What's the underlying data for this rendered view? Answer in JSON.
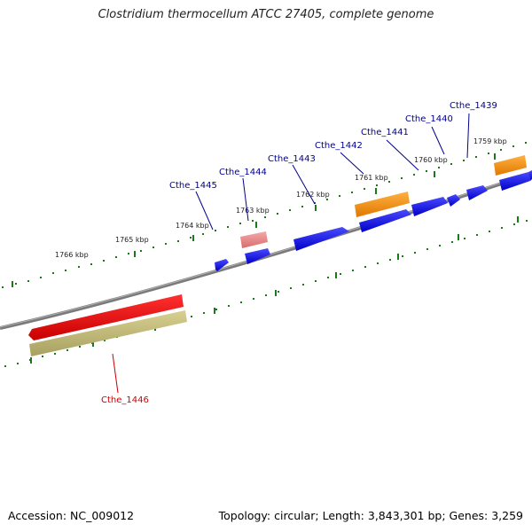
{
  "title": "Clostridium thermocellum ATCC 27405, complete genome",
  "footer": {
    "accession": "Accession: NC_009012",
    "summary": "Topology: circular; Length: 3,843,301 bp; Genes: 3,259"
  },
  "colors": {
    "backbone": "#7a7a7a",
    "tick": "#1a7a1a",
    "gene_label_forward": "#00008b",
    "gene_label_selected": "#cc0000",
    "cds_blue": "#1010e0",
    "cds_orange": "#ff8c00",
    "cds_pink": "#e88080",
    "cds_red": "#e00000",
    "cds_khaki": "#c8c07a"
  },
  "ticks": [
    "1766 kbp",
    "1765 kbp",
    "1764 kbp",
    "1763 kbp",
    "1762 kbp",
    "1761 kbp",
    "1760 kbp",
    "1759 kbp"
  ],
  "genes": [
    {
      "label": "Cthe_1439",
      "highlight": false
    },
    {
      "label": "Cthe_1440",
      "highlight": false
    },
    {
      "label": "Cthe_1441",
      "highlight": false
    },
    {
      "label": "Cthe_1442",
      "highlight": false
    },
    {
      "label": "Cthe_1443",
      "highlight": false
    },
    {
      "label": "Cthe_1444",
      "highlight": false
    },
    {
      "label": "Cthe_1445",
      "highlight": false
    },
    {
      "label": "Cthe_1446",
      "highlight": true
    }
  ]
}
